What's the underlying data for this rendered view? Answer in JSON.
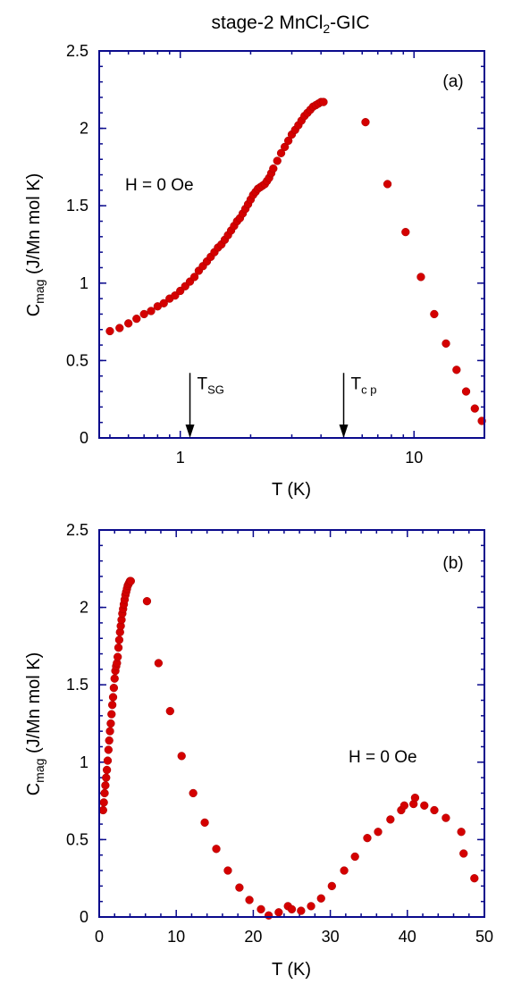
{
  "title": "stage-2 MnCl2-GIC",
  "colors": {
    "frame": "#0a0a8c",
    "points": "#d40000"
  },
  "chart_data": [
    {
      "id": "a",
      "type": "scatter",
      "panel_label": "(a)",
      "xscale": "log",
      "xlim": [
        0.45,
        20
      ],
      "ylim": [
        0,
        2.5
      ],
      "xticks": [
        1,
        10
      ],
      "yticks": [
        0,
        0.5,
        1,
        1.5,
        2,
        2.5
      ],
      "xlabel": "T (K)",
      "ylabel": "C_mag (J/Mn mol K)",
      "annotation": "H = 0 Oe",
      "arrows": [
        {
          "label": "T_SG",
          "x": 1.1,
          "y_from": 0.42,
          "y_to": 0.0
        },
        {
          "label": "T_cp",
          "x": 5.0,
          "y_from": 0.42,
          "y_to": 0.0
        }
      ],
      "series": [
        {
          "x": [
            0.5,
            0.55,
            0.6,
            0.65,
            0.7,
            0.75,
            0.8,
            0.85,
            0.9,
            0.95,
            1.0,
            1.05,
            1.1,
            1.15,
            1.2,
            1.25,
            1.3,
            1.35,
            1.4,
            1.45,
            1.5,
            1.55,
            1.6,
            1.65,
            1.7,
            1.75,
            1.8,
            1.85,
            1.9,
            1.95,
            2.0,
            2.05,
            2.1,
            2.15,
            2.2,
            2.25,
            2.3,
            2.35,
            2.4,
            2.45,
            2.5,
            2.6,
            2.7,
            2.8,
            2.9,
            3.0,
            3.1,
            3.2,
            3.3,
            3.4,
            3.5,
            3.6,
            3.7,
            3.8,
            3.9,
            4.0,
            4.1,
            6.2,
            7.7,
            9.2,
            10.7,
            12.2,
            13.7,
            15.2,
            16.7,
            18.2,
            19.5
          ],
          "y": [
            0.69,
            0.71,
            0.74,
            0.77,
            0.8,
            0.82,
            0.85,
            0.87,
            0.9,
            0.92,
            0.95,
            0.98,
            1.01,
            1.04,
            1.08,
            1.11,
            1.14,
            1.17,
            1.2,
            1.23,
            1.25,
            1.28,
            1.31,
            1.34,
            1.37,
            1.4,
            1.42,
            1.45,
            1.48,
            1.51,
            1.54,
            1.57,
            1.59,
            1.61,
            1.62,
            1.63,
            1.64,
            1.66,
            1.68,
            1.71,
            1.74,
            1.79,
            1.84,
            1.88,
            1.92,
            1.96,
            1.99,
            2.02,
            2.05,
            2.08,
            2.1,
            2.12,
            2.14,
            2.15,
            2.16,
            2.17,
            2.17,
            2.04,
            1.64,
            1.33,
            1.04,
            0.8,
            0.61,
            0.44,
            0.3,
            0.19,
            0.11
          ]
        }
      ]
    },
    {
      "id": "b",
      "type": "scatter",
      "panel_label": "(b)",
      "xscale": "linear",
      "xlim": [
        0,
        50
      ],
      "ylim": [
        0,
        2.5
      ],
      "xticks": [
        0,
        10,
        20,
        30,
        40,
        50
      ],
      "yticks": [
        0,
        0.5,
        1,
        1.5,
        2,
        2.5
      ],
      "xlabel": "T (K)",
      "ylabel": "C_mag (J/Mn mol K)",
      "annotation": "H = 0 Oe",
      "series": [
        {
          "x": [
            0.5,
            0.6,
            0.7,
            0.8,
            0.9,
            1.0,
            1.1,
            1.2,
            1.3,
            1.4,
            1.5,
            1.6,
            1.7,
            1.8,
            1.9,
            2.0,
            2.1,
            2.2,
            2.3,
            2.4,
            2.5,
            2.6,
            2.7,
            2.8,
            2.9,
            3.0,
            3.1,
            3.2,
            3.3,
            3.4,
            3.5,
            3.6,
            3.7,
            3.8,
            3.9,
            4.0,
            4.1,
            6.2,
            7.7,
            9.2,
            10.7,
            12.2,
            13.7,
            15.2,
            16.7,
            18.2,
            19.5,
            21.0,
            22.0,
            23.3,
            24.5,
            25.0,
            26.2,
            27.5,
            28.8,
            30.2,
            31.8,
            33.2,
            34.8,
            36.2,
            37.8,
            39.2,
            39.6,
            40.8,
            41.0,
            42.2,
            43.5,
            45.0,
            47.0,
            47.3,
            48.7
          ],
          "y": [
            0.69,
            0.74,
            0.8,
            0.85,
            0.9,
            0.95,
            1.01,
            1.08,
            1.14,
            1.2,
            1.25,
            1.31,
            1.37,
            1.42,
            1.48,
            1.54,
            1.59,
            1.62,
            1.64,
            1.68,
            1.74,
            1.79,
            1.84,
            1.88,
            1.92,
            1.96,
            1.99,
            2.02,
            2.05,
            2.08,
            2.1,
            2.12,
            2.14,
            2.15,
            2.16,
            2.17,
            2.17,
            2.04,
            1.64,
            1.33,
            1.04,
            0.8,
            0.61,
            0.44,
            0.3,
            0.19,
            0.11,
            0.05,
            0.01,
            0.03,
            0.07,
            0.05,
            0.04,
            0.07,
            0.12,
            0.2,
            0.3,
            0.39,
            0.51,
            0.55,
            0.63,
            0.69,
            0.72,
            0.73,
            0.77,
            0.72,
            0.69,
            0.64,
            0.55,
            0.41,
            0.25
          ]
        }
      ]
    }
  ]
}
